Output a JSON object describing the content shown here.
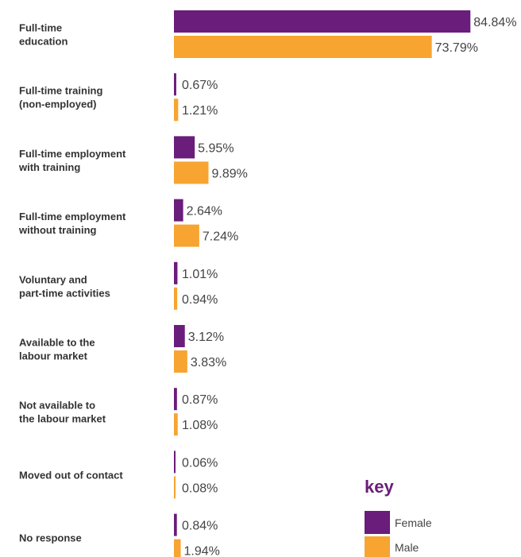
{
  "chart_data": {
    "type": "bar",
    "orientation": "horizontal",
    "categories": [
      [
        "Full-time",
        "education"
      ],
      [
        "Full-time training",
        "(non-employed)"
      ],
      [
        "Full-time employment",
        "with training"
      ],
      [
        "Full-time employment",
        "without training"
      ],
      [
        "Voluntary and",
        "part-time activities"
      ],
      [
        "Available to the",
        "labour market"
      ],
      [
        "Not available to",
        "the labour market"
      ],
      [
        "Moved out of contact"
      ],
      [
        "No response"
      ]
    ],
    "series": [
      {
        "name": "Female",
        "color": "#6a1d7a",
        "values": [
          84.84,
          0.67,
          5.95,
          2.64,
          1.01,
          3.12,
          0.87,
          0.06,
          0.84
        ],
        "labels": [
          "84.84%",
          "0.67%",
          "5.95%",
          "2.64%",
          "1.01%",
          "3.12%",
          "0.87%",
          "0.06%",
          "0.84%"
        ]
      },
      {
        "name": "Male",
        "color": "#f7a431",
        "values": [
          73.79,
          1.21,
          9.89,
          7.24,
          0.94,
          3.83,
          1.08,
          0.08,
          1.94
        ],
        "labels": [
          "73.79%",
          "1.21%",
          "9.89%",
          "7.24%",
          "0.94%",
          "3.83%",
          "1.08%",
          "0.08%",
          "1.94%"
        ]
      }
    ],
    "legend": {
      "title": "key",
      "placement": "bottom-right"
    },
    "xlim": [
      0,
      100
    ],
    "grid": false
  }
}
